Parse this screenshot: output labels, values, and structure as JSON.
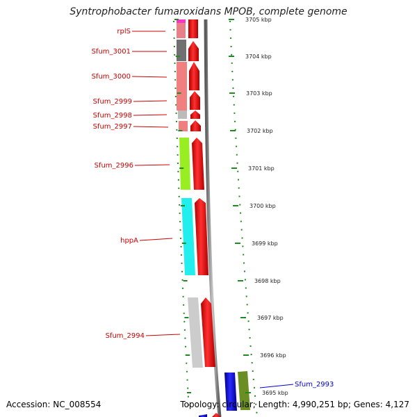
{
  "header": {
    "title": "Syntrophobacter fumaroxidans MPOB, complete genome"
  },
  "footer": {
    "accession": "Accession: NC_008554",
    "summary": "Topology: circular; Length: 4,990,251 bp; Genes: 4,127"
  },
  "colors": {
    "label_red": "#cc0000",
    "label_blue": "#0000cc",
    "cds_red": "#ee0000",
    "backbone": "#8c8c8c",
    "tick_green": "#1f8a1f"
  },
  "scale_labels": [
    "3705 kbp",
    "3704 kbp",
    "3703 kbp",
    "3702 kbp",
    "3701 kbp",
    "3700 kbp",
    "3699 kbp",
    "3698 kbp",
    "3697 kbp",
    "3696 kbp",
    "3695 kbp"
  ],
  "genes": [
    {
      "name": "rplS",
      "color": "#cc0000"
    },
    {
      "name": "Sfum_3001",
      "color": "#cc0000"
    },
    {
      "name": "Sfum_3000",
      "color": "#cc0000"
    },
    {
      "name": "Sfum_2999",
      "color": "#cc0000"
    },
    {
      "name": "Sfum_2998",
      "color": "#cc0000"
    },
    {
      "name": "Sfum_2997",
      "color": "#cc0000"
    },
    {
      "name": "Sfum_2996",
      "color": "#cc0000"
    },
    {
      "name": "hppA",
      "color": "#cc0000"
    },
    {
      "name": "Sfum_2994",
      "color": "#cc0000"
    },
    {
      "name": "Sfum_2993",
      "color": "#0000cc"
    }
  ],
  "cog_blocks": [
    {
      "gene": "rplS",
      "color": "#e8808a"
    },
    {
      "gene": "Sfum_3001",
      "color": "#707070"
    },
    {
      "gene": "Sfum_3000",
      "color": "#f08080"
    },
    {
      "gene": "Sfum_2999",
      "color": "#f08080"
    },
    {
      "gene": "Sfum_2998",
      "color": "#bbbbbb"
    },
    {
      "gene": "Sfum_2997",
      "color": "#f08080"
    },
    {
      "gene": "Sfum_2996",
      "color": "#99ee22"
    },
    {
      "gene": "hppA",
      "color": "#22eeee"
    },
    {
      "gene": "Sfum_2994",
      "color": "#cccccc"
    },
    {
      "gene": "Sfum_2993",
      "color": "#6b8e23"
    }
  ]
}
